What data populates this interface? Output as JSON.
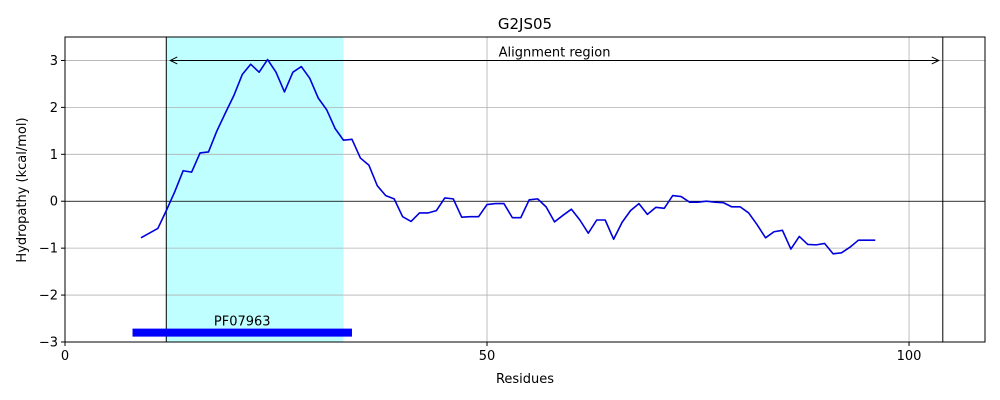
{
  "chart_data": {
    "type": "line",
    "title": "G2JS05",
    "xlabel": "Residues",
    "ylabel": "Hydropathy (kcal/mol)",
    "xlim": [
      0,
      109
    ],
    "ylim": [
      -3,
      3.5
    ],
    "xticks": [
      0,
      50,
      100
    ],
    "yticks": [
      -3,
      -2,
      -1,
      0,
      1,
      2,
      3
    ],
    "grid": true,
    "series": [
      {
        "color": "#0000dd",
        "x": [
          9,
          11,
          12,
          13,
          14,
          15,
          16,
          17,
          18,
          19,
          20,
          21,
          22,
          23,
          24,
          25,
          26,
          27,
          28,
          29,
          30,
          31,
          32,
          33,
          34,
          35,
          36,
          37,
          38,
          39,
          40,
          41,
          42,
          43,
          44,
          45,
          46,
          47,
          48,
          49,
          50,
          51,
          52,
          53,
          54,
          55,
          56,
          57,
          58,
          59,
          60,
          61,
          62,
          63,
          64,
          65,
          66,
          67,
          68,
          69,
          70,
          71,
          72,
          73,
          74,
          75,
          76,
          77,
          78,
          79,
          80,
          81,
          82,
          83,
          84,
          85,
          86,
          87,
          88,
          89,
          90,
          91,
          92,
          93,
          94,
          95,
          96
        ],
        "y": [
          -0.78,
          -0.58,
          -0.2,
          0.2,
          0.65,
          0.62,
          1.03,
          1.05,
          1.5,
          1.88,
          2.25,
          2.7,
          2.92,
          2.75,
          3.02,
          2.75,
          2.33,
          2.75,
          2.87,
          2.62,
          2.2,
          1.95,
          1.55,
          1.3,
          1.32,
          0.92,
          0.77,
          0.33,
          0.12,
          0.05,
          -0.33,
          -0.43,
          -0.25,
          -0.25,
          -0.2,
          0.07,
          0.05,
          -0.34,
          -0.33,
          -0.33,
          -0.07,
          -0.05,
          -0.05,
          -0.35,
          -0.35,
          0.03,
          0.05,
          -0.12,
          -0.44,
          -0.3,
          -0.17,
          -0.4,
          -0.68,
          -0.4,
          -0.4,
          -0.81,
          -0.45,
          -0.2,
          -0.05,
          -0.28,
          -0.13,
          -0.15,
          0.12,
          0.1,
          -0.02,
          -0.02,
          0.0,
          -0.02,
          -0.03,
          -0.12,
          -0.12,
          -0.25,
          -0.5,
          -0.78,
          -0.65,
          -0.62,
          -1.02,
          -0.75,
          -0.92,
          -0.93,
          -0.9,
          -1.12,
          -1.1,
          -0.98,
          -0.83,
          -0.83,
          -0.83
        ]
      }
    ],
    "highlight_region": {
      "from": 12,
      "to": 33,
      "color": "#c0ffff"
    },
    "vertical_lines": [
      12,
      104
    ],
    "alignment_arrow": {
      "label": "Alignment region",
      "from": 12,
      "to": 104,
      "y": 3.0
    },
    "domain_bar": {
      "label": "PF07963",
      "from": 8,
      "to": 34,
      "y": -2.8,
      "color": "#0000ff"
    }
  }
}
